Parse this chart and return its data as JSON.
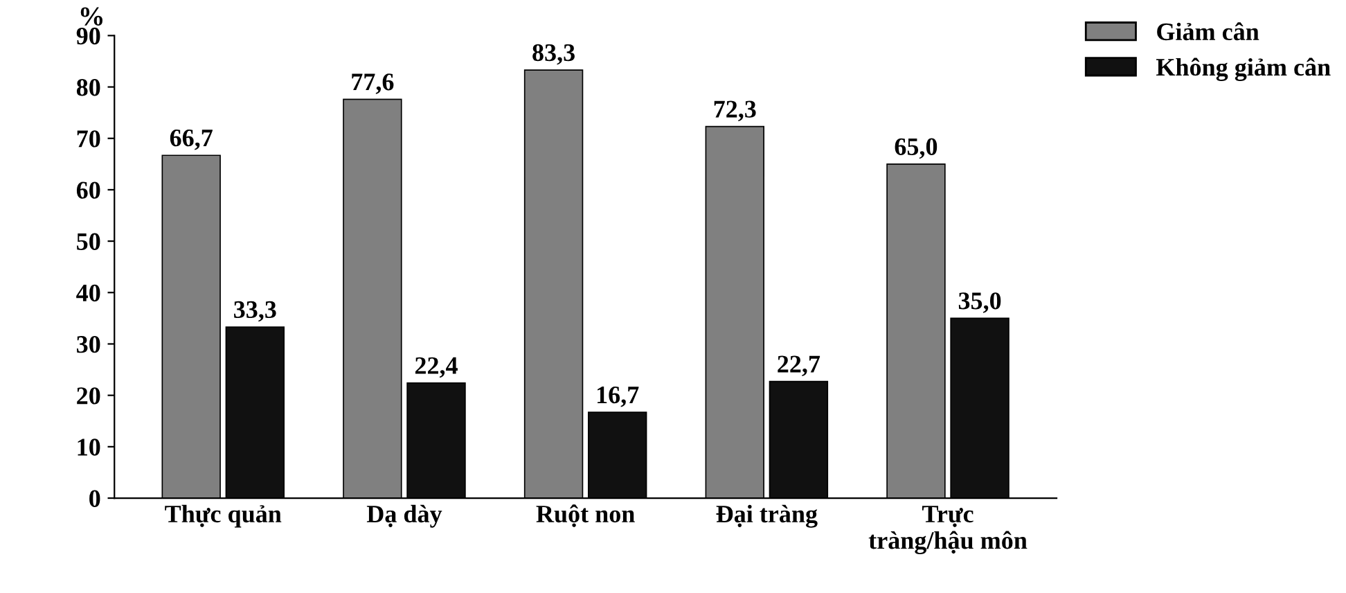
{
  "chart_data": {
    "type": "bar",
    "ylabel": "%",
    "categories": [
      "Thực quản",
      "Dạ dày",
      "Ruột non",
      "Đại tràng",
      "Trực\ntràng/hậu môn"
    ],
    "series": [
      {
        "name": "Giảm cân",
        "color": "#808080",
        "values": [
          66.7,
          77.6,
          83.3,
          72.3,
          65.0
        ],
        "value_labels": [
          "66,7",
          "77,6",
          "83,3",
          "72,3",
          "65,0"
        ]
      },
      {
        "name": "Không giảm cân",
        "color": "#111111",
        "values": [
          33.3,
          22.4,
          16.7,
          22.7,
          35.0
        ],
        "value_labels": [
          "33,3",
          "22,4",
          "16,7",
          "22,7",
          "35,0"
        ]
      }
    ],
    "ylim": [
      0,
      90
    ],
    "yticks": [
      0,
      10,
      20,
      30,
      40,
      50,
      60,
      70,
      80,
      90
    ],
    "grid": false,
    "legend": "top right"
  }
}
